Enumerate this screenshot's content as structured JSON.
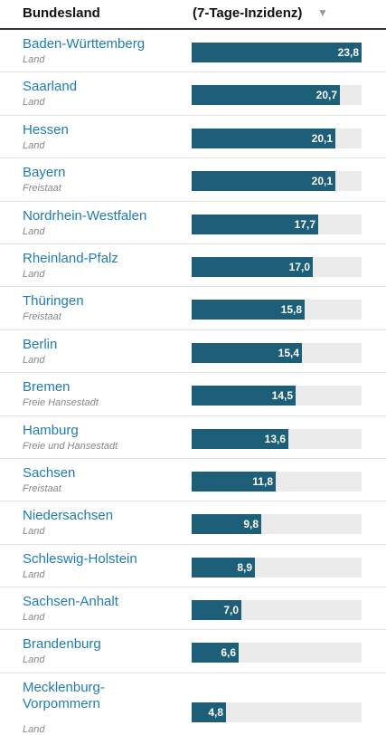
{
  "header": {
    "col1": "Bundesland",
    "col2": "(7-Tage-Inzidenz)",
    "sort_icon": "▼"
  },
  "colors": {
    "bar": "#1d5f78",
    "track": "#ebebeb",
    "name": "#1f7cb3",
    "type": "#888888"
  },
  "chart_data": {
    "type": "bar",
    "xlabel": "",
    "ylabel": "(7-Tage-Inzidenz)",
    "ylim": [
      0,
      23.8
    ],
    "categories": [
      "Baden-Württemberg",
      "Saarland",
      "Hessen",
      "Bayern",
      "Nordrhein-Westfalen",
      "Rheinland-Pfalz",
      "Thüringen",
      "Berlin",
      "Bremen",
      "Hamburg",
      "Sachsen",
      "Niedersachsen",
      "Schleswig-Holstein",
      "Sachsen-Anhalt",
      "Brandenburg",
      "Mecklenburg-\nVorpommern"
    ],
    "types": [
      "Land",
      "Land",
      "Land",
      "Freistaat",
      "Land",
      "Land",
      "Freistaat",
      "Land",
      "Freie Hansestadt",
      "Freie und Hansestadt",
      "Freistaat",
      "Land",
      "Land",
      "Land",
      "Land",
      "Land"
    ],
    "values": [
      23.8,
      20.7,
      20.1,
      20.1,
      17.7,
      17.0,
      15.8,
      15.4,
      14.5,
      13.6,
      11.8,
      9.8,
      8.9,
      7.0,
      6.6,
      4.8
    ],
    "labels": [
      "23,8",
      "20,7",
      "20,1",
      "20,1",
      "17,7",
      "17,0",
      "15,8",
      "15,4",
      "14,5",
      "13,6",
      "11,8",
      "9,8",
      "8,9",
      "7,0",
      "6,6",
      "4,8"
    ]
  }
}
